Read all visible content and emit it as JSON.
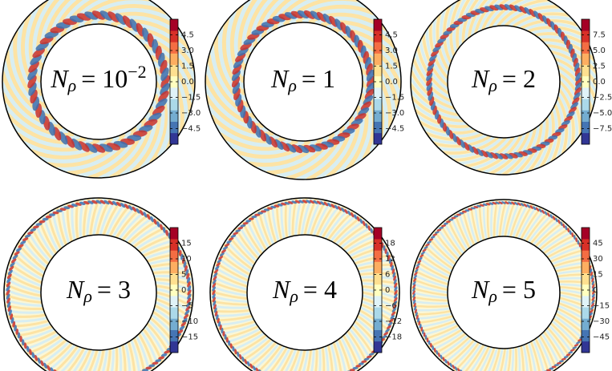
{
  "panels": [
    {
      "label": {
        "base": "N",
        "sub": "ρ",
        "rest": "= 10",
        "sup": "−2"
      },
      "colorbar": {
        "clim": [
          -6,
          6
        ],
        "ticks": [
          {
            "value": 4.5,
            "label": "4.5"
          },
          {
            "value": 3,
            "label": "3.0"
          },
          {
            "value": 1.5,
            "label": "1.5"
          },
          {
            "value": 0,
            "label": "0.0"
          },
          {
            "value": -1.5,
            "label": "−1.5"
          },
          {
            "value": -3,
            "label": "−3.0"
          },
          {
            "value": -4.5,
            "label": "−4.5"
          }
        ]
      }
    },
    {
      "label": {
        "base": "N",
        "sub": "ρ",
        "rest": "= 1"
      },
      "colorbar": {
        "clim": [
          -6,
          6
        ],
        "ticks": [
          {
            "value": 4.5,
            "label": "4.5"
          },
          {
            "value": 3,
            "label": "3.0"
          },
          {
            "value": 1.5,
            "label": "1.5"
          },
          {
            "value": 0,
            "label": "0.0"
          },
          {
            "value": -1.5,
            "label": "−1.5"
          },
          {
            "value": -3,
            "label": "−3.0"
          },
          {
            "value": -4.5,
            "label": "−4.5"
          }
        ]
      }
    },
    {
      "label": {
        "base": "N",
        "sub": "ρ",
        "rest": "= 2"
      },
      "colorbar": {
        "clim": [
          -10,
          10
        ],
        "ticks": [
          {
            "value": 7.5,
            "label": "7.5"
          },
          {
            "value": 5,
            "label": "5.0"
          },
          {
            "value": 2.5,
            "label": "2.5"
          },
          {
            "value": 0,
            "label": "0.0"
          },
          {
            "value": -2.5,
            "label": "−2.5"
          },
          {
            "value": -5,
            "label": "−5.0"
          },
          {
            "value": -7.5,
            "label": "−7.5"
          }
        ]
      }
    },
    {
      "label": {
        "base": "N",
        "sub": "ρ",
        "rest": "= 3"
      },
      "colorbar": {
        "clim": [
          -20,
          20
        ],
        "ticks": [
          15,
          10,
          5,
          0,
          {
            "value": -5,
            "label": "−5"
          },
          {
            "value": -10,
            "label": "−10"
          },
          {
            "value": -15,
            "label": "−15"
          }
        ]
      }
    },
    {
      "label": {
        "base": "N",
        "sub": "ρ",
        "rest": "= 4"
      },
      "colorbar": {
        "clim": [
          -24,
          24
        ],
        "ticks": [
          18,
          12,
          6,
          0,
          {
            "value": -6,
            "label": "−6"
          },
          {
            "value": -12,
            "label": "−12"
          },
          {
            "value": -18,
            "label": "−18"
          }
        ]
      }
    },
    {
      "label": {
        "base": "N",
        "sub": "ρ",
        "rest": "= 5"
      },
      "colorbar": {
        "clim": [
          -60,
          60
        ],
        "ticks": [
          45,
          30,
          15,
          0,
          {
            "value": -15,
            "label": "−15"
          },
          {
            "value": -30,
            "label": "−30"
          },
          {
            "value": -45,
            "label": "−45"
          }
        ]
      }
    }
  ]
}
